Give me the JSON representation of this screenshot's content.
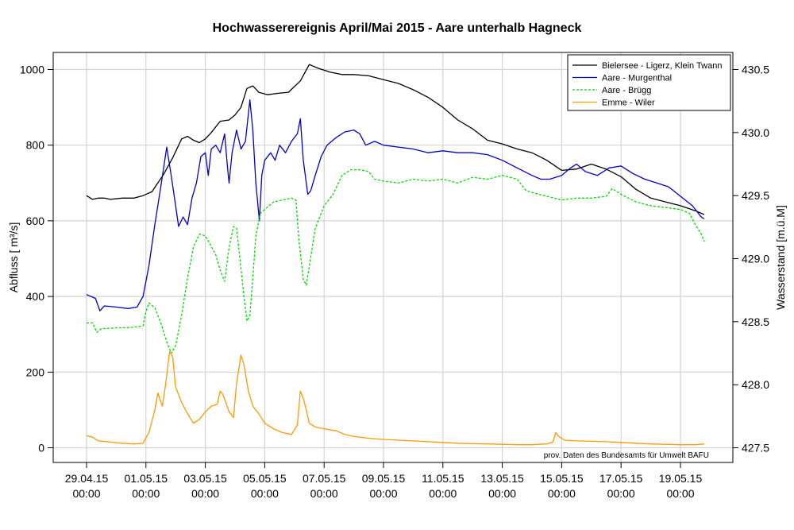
{
  "chart_data": {
    "type": "line",
    "title": "Hochwasserereignis April/Mai 2015 - Aare unterhalb Hagneck",
    "ylabel_left": "Abfluss [ m³/s]",
    "ylabel_right": "Wasserstand [m.ü.M]",
    "source_note": "prov. Daten des Bundesamts für Umwelt BAFU",
    "grid": true,
    "legend_position": "top-right",
    "x_ticks": [
      {
        "d": 0,
        "l1": "29.04.15",
        "l2": "00:00"
      },
      {
        "d": 2,
        "l1": "01.05.15",
        "l2": "00:00"
      },
      {
        "d": 4,
        "l1": "03.05.15",
        "l2": "00:00"
      },
      {
        "d": 6,
        "l1": "05.05.15",
        "l2": "00:00"
      },
      {
        "d": 8,
        "l1": "07.05.15",
        "l2": "00:00"
      },
      {
        "d": 10,
        "l1": "09.05.15",
        "l2": "00:00"
      },
      {
        "d": 12,
        "l1": "11.05.15",
        "l2": "00:00"
      },
      {
        "d": 14,
        "l1": "13.05.15",
        "l2": "00:00"
      },
      {
        "d": 16,
        "l1": "15.05.15",
        "l2": "00:00"
      },
      {
        "d": 18,
        "l1": "17.05.15",
        "l2": "00:00"
      },
      {
        "d": 20,
        "l1": "19.05.15",
        "l2": "00:00"
      }
    ],
    "y_left_ticks": [
      "0",
      "200",
      "400",
      "600",
      "800",
      "1000"
    ],
    "y_right_ticks": [
      "427.5",
      "428.0",
      "428.5",
      "429.0",
      "429.5",
      "430.0",
      "430.5"
    ],
    "ylim_left": [
      0,
      1000
    ],
    "ylim_right": [
      427.5,
      430.5
    ],
    "xlim_days": [
      0,
      21
    ],
    "series": [
      {
        "name": "Bielersee - Ligerz, Klein Twann",
        "color": "#000000",
        "dash": "",
        "axis": "right",
        "points": [
          [
            0,
            429.5
          ],
          [
            0.2,
            429.47
          ],
          [
            0.4,
            429.48
          ],
          [
            0.6,
            429.48
          ],
          [
            0.8,
            429.47
          ],
          [
            1.2,
            429.48
          ],
          [
            1.6,
            429.48
          ],
          [
            1.9,
            429.5
          ],
          [
            2.2,
            429.53
          ],
          [
            2.4,
            429.6
          ],
          [
            2.6,
            429.67
          ],
          [
            2.9,
            429.8
          ],
          [
            3.2,
            429.95
          ],
          [
            3.4,
            429.97
          ],
          [
            3.6,
            429.94
          ],
          [
            3.8,
            429.92
          ],
          [
            4.0,
            429.95
          ],
          [
            4.2,
            430.0
          ],
          [
            4.5,
            430.09
          ],
          [
            4.8,
            430.1
          ],
          [
            5.0,
            430.14
          ],
          [
            5.2,
            430.2
          ],
          [
            5.4,
            430.35
          ],
          [
            5.6,
            430.37
          ],
          [
            5.8,
            430.32
          ],
          [
            6.1,
            430.3
          ],
          [
            6.4,
            430.31
          ],
          [
            6.8,
            430.32
          ],
          [
            7.2,
            430.41
          ],
          [
            7.5,
            430.54
          ],
          [
            7.8,
            430.51
          ],
          [
            8.2,
            430.48
          ],
          [
            8.6,
            430.46
          ],
          [
            9.0,
            430.46
          ],
          [
            9.5,
            430.45
          ],
          [
            10.0,
            430.42
          ],
          [
            10.5,
            430.39
          ],
          [
            11.0,
            430.34
          ],
          [
            11.5,
            430.28
          ],
          [
            12.0,
            430.2
          ],
          [
            12.5,
            430.1
          ],
          [
            13.0,
            430.03
          ],
          [
            13.5,
            429.94
          ],
          [
            14.0,
            429.91
          ],
          [
            14.5,
            429.87
          ],
          [
            15.0,
            429.84
          ],
          [
            15.5,
            429.78
          ],
          [
            16.0,
            429.7
          ],
          [
            16.5,
            429.71
          ],
          [
            17.0,
            429.75
          ],
          [
            17.5,
            429.71
          ],
          [
            18.0,
            429.65
          ],
          [
            18.5,
            429.55
          ],
          [
            19.0,
            429.48
          ],
          [
            19.5,
            429.45
          ],
          [
            20.0,
            429.42
          ],
          [
            20.5,
            429.38
          ],
          [
            20.8,
            429.35
          ]
        ]
      },
      {
        "name": "Aare - Murgenthal",
        "color": "#0000cc",
        "dash": "",
        "axis": "left",
        "points": [
          [
            0,
            405
          ],
          [
            0.3,
            395
          ],
          [
            0.45,
            362
          ],
          [
            0.6,
            375
          ],
          [
            1.0,
            372
          ],
          [
            1.4,
            368
          ],
          [
            1.7,
            372
          ],
          [
            1.9,
            400
          ],
          [
            2.1,
            480
          ],
          [
            2.3,
            590
          ],
          [
            2.5,
            690
          ],
          [
            2.7,
            795
          ],
          [
            2.85,
            720
          ],
          [
            3.0,
            640
          ],
          [
            3.1,
            585
          ],
          [
            3.25,
            610
          ],
          [
            3.4,
            590
          ],
          [
            3.55,
            660
          ],
          [
            3.7,
            700
          ],
          [
            3.85,
            770
          ],
          [
            4.0,
            780
          ],
          [
            4.1,
            720
          ],
          [
            4.2,
            790
          ],
          [
            4.35,
            800
          ],
          [
            4.5,
            780
          ],
          [
            4.65,
            830
          ],
          [
            4.75,
            740
          ],
          [
            4.8,
            700
          ],
          [
            4.9,
            780
          ],
          [
            5.05,
            840
          ],
          [
            5.2,
            790
          ],
          [
            5.35,
            810
          ],
          [
            5.5,
            920
          ],
          [
            5.6,
            840
          ],
          [
            5.7,
            700
          ],
          [
            5.82,
            600
          ],
          [
            5.9,
            720
          ],
          [
            6.0,
            760
          ],
          [
            6.2,
            780
          ],
          [
            6.35,
            760
          ],
          [
            6.5,
            800
          ],
          [
            6.7,
            780
          ],
          [
            6.9,
            810
          ],
          [
            7.1,
            830
          ],
          [
            7.2,
            870
          ],
          [
            7.3,
            760
          ],
          [
            7.45,
            670
          ],
          [
            7.55,
            680
          ],
          [
            7.7,
            720
          ],
          [
            7.9,
            770
          ],
          [
            8.1,
            800
          ],
          [
            8.4,
            820
          ],
          [
            8.7,
            835
          ],
          [
            9.0,
            840
          ],
          [
            9.2,
            830
          ],
          [
            9.4,
            800
          ],
          [
            9.7,
            810
          ],
          [
            10.0,
            800
          ],
          [
            10.5,
            795
          ],
          [
            11.0,
            790
          ],
          [
            11.5,
            780
          ],
          [
            12.0,
            785
          ],
          [
            12.5,
            780
          ],
          [
            13.0,
            780
          ],
          [
            13.5,
            775
          ],
          [
            14.0,
            760
          ],
          [
            14.5,
            740
          ],
          [
            15.0,
            720
          ],
          [
            15.3,
            710
          ],
          [
            15.6,
            710
          ],
          [
            16.0,
            720
          ],
          [
            16.3,
            740
          ],
          [
            16.5,
            750
          ],
          [
            16.8,
            730
          ],
          [
            17.2,
            720
          ],
          [
            17.6,
            740
          ],
          [
            18.0,
            745
          ],
          [
            18.4,
            725
          ],
          [
            18.8,
            710
          ],
          [
            19.2,
            700
          ],
          [
            19.6,
            690
          ],
          [
            20.0,
            665
          ],
          [
            20.4,
            640
          ],
          [
            20.7,
            610
          ],
          [
            20.8,
            605
          ]
        ]
      },
      {
        "name": "Aare - Brügg",
        "color": "#00dd00",
        "dash": "3,2",
        "axis": "left",
        "points": [
          [
            0,
            330
          ],
          [
            0.2,
            330
          ],
          [
            0.35,
            305
          ],
          [
            0.5,
            315
          ],
          [
            1.0,
            317
          ],
          [
            1.5,
            318
          ],
          [
            1.9,
            322
          ],
          [
            2.0,
            360
          ],
          [
            2.1,
            383
          ],
          [
            2.3,
            370
          ],
          [
            2.5,
            330
          ],
          [
            2.7,
            280
          ],
          [
            2.85,
            250
          ],
          [
            3.0,
            270
          ],
          [
            3.2,
            350
          ],
          [
            3.4,
            450
          ],
          [
            3.6,
            530
          ],
          [
            3.8,
            565
          ],
          [
            4.0,
            560
          ],
          [
            4.15,
            540
          ],
          [
            4.35,
            510
          ],
          [
            4.5,
            470
          ],
          [
            4.65,
            440
          ],
          [
            4.8,
            530
          ],
          [
            4.95,
            585
          ],
          [
            5.05,
            580
          ],
          [
            5.15,
            510
          ],
          [
            5.3,
            400
          ],
          [
            5.4,
            335
          ],
          [
            5.5,
            350
          ],
          [
            5.6,
            450
          ],
          [
            5.7,
            560
          ],
          [
            5.85,
            620
          ],
          [
            6.0,
            630
          ],
          [
            6.3,
            650
          ],
          [
            6.6,
            655
          ],
          [
            6.9,
            660
          ],
          [
            7.05,
            655
          ],
          [
            7.15,
            550
          ],
          [
            7.3,
            445
          ],
          [
            7.4,
            430
          ],
          [
            7.5,
            480
          ],
          [
            7.7,
            580
          ],
          [
            8.0,
            640
          ],
          [
            8.3,
            670
          ],
          [
            8.6,
            720
          ],
          [
            8.9,
            735
          ],
          [
            9.2,
            735
          ],
          [
            9.5,
            730
          ],
          [
            9.7,
            710
          ],
          [
            10.0,
            705
          ],
          [
            10.5,
            700
          ],
          [
            11.0,
            710
          ],
          [
            11.5,
            705
          ],
          [
            12.0,
            710
          ],
          [
            12.5,
            700
          ],
          [
            13.0,
            715
          ],
          [
            13.5,
            710
          ],
          [
            14.0,
            720
          ],
          [
            14.5,
            710
          ],
          [
            14.8,
            680
          ],
          [
            15.0,
            675
          ],
          [
            15.5,
            665
          ],
          [
            16.0,
            655
          ],
          [
            16.5,
            660
          ],
          [
            17.0,
            660
          ],
          [
            17.5,
            665
          ],
          [
            17.7,
            685
          ],
          [
            18.0,
            670
          ],
          [
            18.5,
            650
          ],
          [
            19.0,
            640
          ],
          [
            19.5,
            635
          ],
          [
            20.0,
            630
          ],
          [
            20.3,
            620
          ],
          [
            20.5,
            590
          ],
          [
            20.7,
            565
          ],
          [
            20.8,
            545
          ]
        ]
      },
      {
        "name": "Emme - Wiler",
        "color": "#ff9900",
        "dash": "",
        "axis": "left",
        "points": [
          [
            0,
            32
          ],
          [
            0.2,
            28
          ],
          [
            0.4,
            18
          ],
          [
            0.8,
            15
          ],
          [
            1.2,
            12
          ],
          [
            1.6,
            10
          ],
          [
            1.9,
            12
          ],
          [
            2.1,
            40
          ],
          [
            2.3,
            100
          ],
          [
            2.4,
            145
          ],
          [
            2.55,
            110
          ],
          [
            2.65,
            160
          ],
          [
            2.8,
            255
          ],
          [
            2.9,
            240
          ],
          [
            3.0,
            160
          ],
          [
            3.2,
            120
          ],
          [
            3.4,
            90
          ],
          [
            3.6,
            65
          ],
          [
            3.8,
            75
          ],
          [
            4.0,
            95
          ],
          [
            4.2,
            110
          ],
          [
            4.4,
            115
          ],
          [
            4.5,
            150
          ],
          [
            4.6,
            140
          ],
          [
            4.8,
            95
          ],
          [
            4.95,
            80
          ],
          [
            5.05,
            170
          ],
          [
            5.2,
            245
          ],
          [
            5.3,
            220
          ],
          [
            5.45,
            150
          ],
          [
            5.6,
            110
          ],
          [
            5.8,
            90
          ],
          [
            6.0,
            65
          ],
          [
            6.3,
            50
          ],
          [
            6.6,
            40
          ],
          [
            6.9,
            35
          ],
          [
            7.1,
            60
          ],
          [
            7.2,
            150
          ],
          [
            7.3,
            130
          ],
          [
            7.4,
            100
          ],
          [
            7.5,
            65
          ],
          [
            7.7,
            55
          ],
          [
            8.0,
            50
          ],
          [
            8.4,
            45
          ],
          [
            8.7,
            35
          ],
          [
            9.0,
            30
          ],
          [
            9.5,
            25
          ],
          [
            10.0,
            22
          ],
          [
            10.5,
            20
          ],
          [
            11.0,
            18
          ],
          [
            11.5,
            16
          ],
          [
            12.0,
            14
          ],
          [
            12.5,
            12
          ],
          [
            13.0,
            11
          ],
          [
            13.5,
            10
          ],
          [
            14.0,
            9
          ],
          [
            14.5,
            8
          ],
          [
            15.0,
            8
          ],
          [
            15.5,
            10
          ],
          [
            15.7,
            15
          ],
          [
            15.8,
            40
          ],
          [
            15.9,
            30
          ],
          [
            16.1,
            20
          ],
          [
            16.5,
            18
          ],
          [
            17.0,
            17
          ],
          [
            17.5,
            16
          ],
          [
            18.0,
            14
          ],
          [
            18.5,
            12
          ],
          [
            19.0,
            10
          ],
          [
            19.5,
            9
          ],
          [
            20.0,
            8
          ],
          [
            20.5,
            8
          ],
          [
            20.8,
            10
          ]
        ]
      }
    ]
  }
}
